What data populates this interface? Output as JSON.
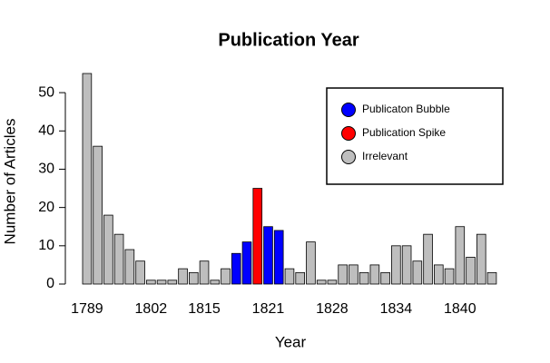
{
  "chart_data": {
    "type": "bar",
    "title": "Publication Year",
    "xlabel": "Year",
    "ylabel": "Number of Articles",
    "categories": [
      "1789",
      null,
      null,
      null,
      null,
      null,
      "1802",
      null,
      null,
      null,
      null,
      "1815",
      null,
      null,
      null,
      null,
      null,
      "1821",
      null,
      null,
      null,
      null,
      null,
      "1828",
      null,
      null,
      null,
      null,
      null,
      "1834",
      null,
      null,
      null,
      null,
      null,
      "1840",
      null,
      null,
      null
    ],
    "values": [
      55,
      36,
      18,
      13,
      9,
      6,
      1,
      1,
      1,
      4,
      3,
      6,
      1,
      4,
      8,
      11,
      25,
      15,
      14,
      4,
      3,
      11,
      1,
      1,
      5,
      5,
      3,
      5,
      3,
      10,
      10,
      6,
      13,
      5,
      4,
      15,
      7,
      13,
      3
    ],
    "colors": [
      "#bebebe",
      "#bebebe",
      "#bebebe",
      "#bebebe",
      "#bebebe",
      "#bebebe",
      "#bebebe",
      "#bebebe",
      "#bebebe",
      "#bebebe",
      "#bebebe",
      "#bebebe",
      "#bebebe",
      "#bebebe",
      "#0000ff",
      "#0000ff",
      "#ff0000",
      "#0000ff",
      "#0000ff",
      "#bebebe",
      "#bebebe",
      "#bebebe",
      "#bebebe",
      "#bebebe",
      "#bebebe",
      "#bebebe",
      "#bebebe",
      "#bebebe",
      "#bebebe",
      "#bebebe",
      "#bebebe",
      "#bebebe",
      "#bebebe",
      "#bebebe",
      "#bebebe",
      "#bebebe",
      "#bebebe",
      "#bebebe",
      "#bebebe"
    ],
    "legend": [
      {
        "name": "Publicaton Bubble",
        "color": "#0000ff"
      },
      {
        "name": "Publication Spike",
        "color": "#ff0000"
      },
      {
        "name": "Irrelevant",
        "color": "#bebebe"
      }
    ],
    "ylim": [
      0,
      55
    ],
    "yticks": [
      0,
      10,
      20,
      30,
      40,
      50
    ]
  }
}
